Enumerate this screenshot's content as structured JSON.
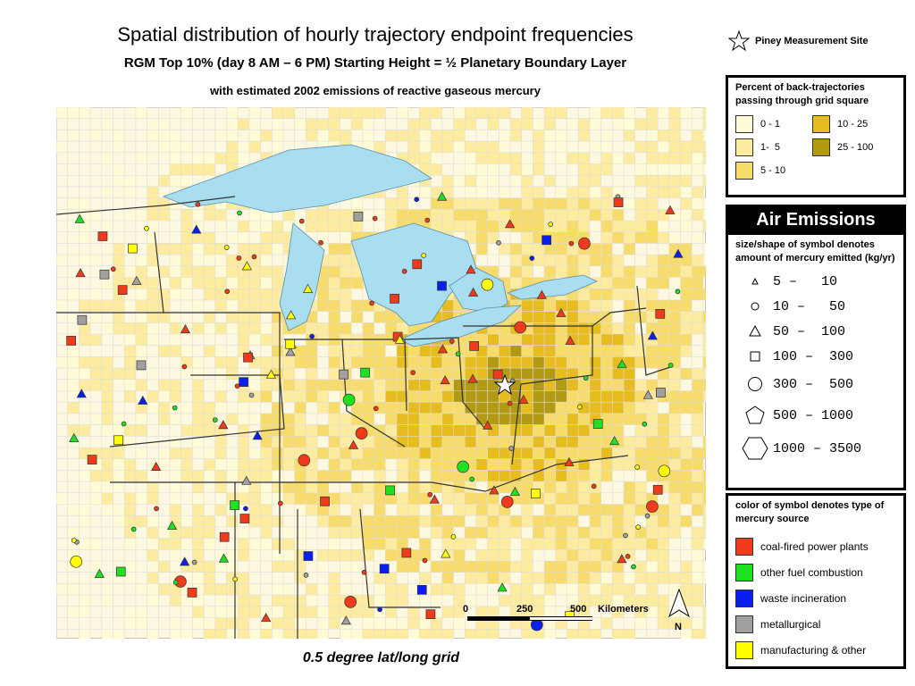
{
  "header": {
    "title": "Spatial distribution of hourly trajectory endpoint frequencies",
    "subtitle": "RGM Top 10% (day 8 AM – 6 PM) Starting Height = ½ Planetary Boundary Layer",
    "subtitle2": "with estimated 2002 emissions of reactive gaseous mercury"
  },
  "site_legend": "Piney Measurement Site",
  "frequency_legend": {
    "title": "Percent of back-trajectories passing through grid square",
    "items": [
      "0 - 1",
      "10 - 25",
      "1-  5",
      "25 - 100",
      "5 - 10"
    ]
  },
  "air_emissions": {
    "title": "Air Emissions",
    "size_title": "size/shape of symbol denotes amount of mercury emitted (kg/yr)",
    "sizes": [
      "5 –   10",
      "10 –   50",
      "50 –  100",
      "100 –  300",
      "300 –  500",
      "500 – 1000",
      "1000 – 3500"
    ]
  },
  "color_legend": {
    "title": "color of symbol denotes type of mercury source",
    "items": [
      "coal-fired power plants",
      "other fuel combustion",
      "waste incineration",
      "metallurgical",
      "manufacturing & other"
    ]
  },
  "scale_bar": {
    "ticks": [
      "0",
      "250",
      "500"
    ],
    "unit": "Kilometers",
    "north": "N"
  },
  "caption": "0.5 degree lat/long grid"
}
